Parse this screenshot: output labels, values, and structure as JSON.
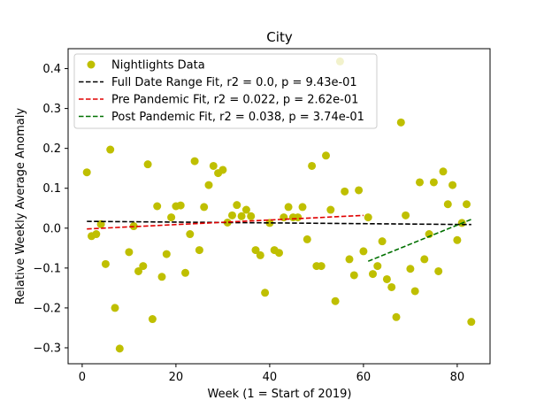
{
  "chart_data": {
    "type": "scatter",
    "title": "City",
    "xlabel": "Week (1 = Start of 2019)",
    "ylabel": "Relative Weekly Average Anomaly",
    "xlim": [
      -3,
      87
    ],
    "ylim": [
      -0.34,
      0.45
    ],
    "xticks": [
      0,
      20,
      40,
      60,
      80
    ],
    "yticks": [
      -0.3,
      -0.2,
      -0.1,
      0.0,
      0.1,
      0.2,
      0.3,
      0.4
    ],
    "ytick_labels": [
      "−0.3",
      "−0.2",
      "−0.1",
      "0.0",
      "0.1",
      "0.2",
      "0.3",
      "0.4"
    ],
    "legend_position": "upper-left",
    "grid": false,
    "series": [
      {
        "name": "Nightlights Data",
        "kind": "points",
        "color": "#bfbf00",
        "points": [
          [
            1,
            0.14
          ],
          [
            2,
            -0.02
          ],
          [
            3,
            -0.015
          ],
          [
            4,
            0.01
          ],
          [
            5,
            -0.09
          ],
          [
            6,
            0.197
          ],
          [
            7,
            -0.2
          ],
          [
            8,
            -0.302
          ],
          [
            10,
            -0.06
          ],
          [
            11,
            0.005
          ],
          [
            12,
            -0.108
          ],
          [
            13,
            -0.095
          ],
          [
            14,
            0.16
          ],
          [
            15,
            -0.228
          ],
          [
            16,
            0.055
          ],
          [
            17,
            -0.122
          ],
          [
            18,
            -0.065
          ],
          [
            19,
            0.027
          ],
          [
            20,
            0.055
          ],
          [
            21,
            0.057
          ],
          [
            22,
            -0.112
          ],
          [
            23,
            -0.015
          ],
          [
            24,
            0.168
          ],
          [
            25,
            -0.055
          ],
          [
            26,
            0.053
          ],
          [
            27,
            0.108
          ],
          [
            28,
            0.156
          ],
          [
            29,
            0.138
          ],
          [
            30,
            0.146
          ],
          [
            31,
            0.014
          ],
          [
            32,
            0.032
          ],
          [
            33,
            0.058
          ],
          [
            34,
            0.03
          ],
          [
            35,
            0.046
          ],
          [
            36,
            0.03
          ],
          [
            37,
            -0.055
          ],
          [
            38,
            -0.068
          ],
          [
            39,
            -0.162
          ],
          [
            40,
            0.013
          ],
          [
            41,
            -0.055
          ],
          [
            42,
            -0.062
          ],
          [
            43,
            0.027
          ],
          [
            44,
            0.053
          ],
          [
            45,
            0.027
          ],
          [
            46,
            0.027
          ],
          [
            47,
            0.053
          ],
          [
            48,
            -0.028
          ],
          [
            49,
            0.156
          ],
          [
            50,
            -0.095
          ],
          [
            51,
            -0.095
          ],
          [
            52,
            0.182
          ],
          [
            53,
            0.046
          ],
          [
            54,
            -0.183
          ],
          [
            55,
            0.418
          ],
          [
            56,
            0.092
          ],
          [
            57,
            -0.078
          ],
          [
            58,
            -0.118
          ],
          [
            59,
            0.095
          ],
          [
            60,
            -0.058
          ],
          [
            61,
            0.027
          ],
          [
            62,
            -0.115
          ],
          [
            63,
            -0.095
          ],
          [
            64,
            -0.033
          ],
          [
            65,
            -0.128
          ],
          [
            66,
            -0.148
          ],
          [
            67,
            -0.223
          ],
          [
            68,
            0.265
          ],
          [
            69,
            0.032
          ],
          [
            70,
            -0.102
          ],
          [
            71,
            -0.158
          ],
          [
            72,
            0.115
          ],
          [
            73,
            -0.078
          ],
          [
            74,
            -0.015
          ],
          [
            75,
            0.115
          ],
          [
            76,
            -0.108
          ],
          [
            77,
            0.142
          ],
          [
            78,
            0.06
          ],
          [
            79,
            0.108
          ],
          [
            80,
            -0.03
          ],
          [
            81,
            0.013
          ],
          [
            82,
            0.06
          ],
          [
            83,
            -0.235
          ]
        ]
      },
      {
        "name": "Full Date Range Fit, r2 = 0.0, p = 9.43e-01",
        "kind": "line",
        "color": "#000000",
        "x": [
          1,
          83
        ],
        "y": [
          0.017,
          0.009
        ]
      },
      {
        "name": "Pre Pandemic Fit, r2 = 0.022, p = 2.62e-01",
        "kind": "line",
        "color": "#e00000",
        "x": [
          1,
          60
        ],
        "y": [
          -0.002,
          0.032
        ]
      },
      {
        "name": "Post Pandemic Fit, r2 = 0.038, p = 3.74e-01",
        "kind": "line",
        "color": "#007000",
        "x": [
          61,
          83
        ],
        "y": [
          -0.083,
          0.022
        ]
      }
    ]
  }
}
